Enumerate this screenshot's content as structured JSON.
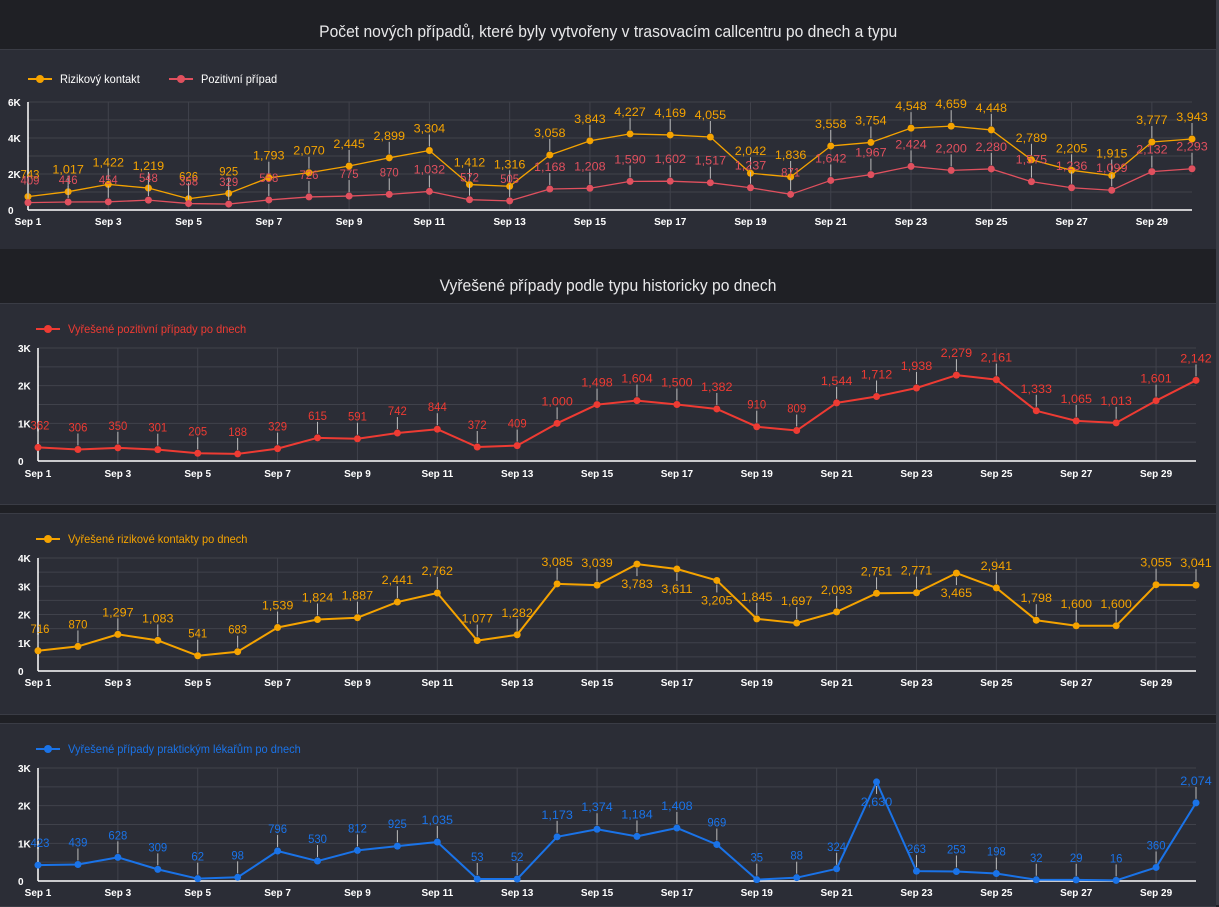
{
  "sections": {
    "section1_title": "Počet nových případů, které byly vytvořeny v trasovacím callcentru po dnech a typu",
    "section2_title": "Vyřešené případy podle typu historicky po dnech"
  },
  "colors": {
    "orange": "#f5a300",
    "red_soft": "#e0505e",
    "red": "#ee3b33",
    "blue": "#1a73e8",
    "axis_text": "#ffffff",
    "grid": "#40424b"
  },
  "chart_data": [
    {
      "id": "new-cases",
      "type": "line",
      "title": "Počet nových případů, které byly vytvořeny v trasovacím callcentru po dnech a typu",
      "xlabel": "",
      "ylabel": "",
      "legend_position": "top-left",
      "grid": true,
      "x": [
        "Sep 1",
        "Sep 2",
        "Sep 3",
        "Sep 4",
        "Sep 5",
        "Sep 6",
        "Sep 7",
        "Sep 8",
        "Sep 9",
        "Sep 10",
        "Sep 11",
        "Sep 12",
        "Sep 13",
        "Sep 14",
        "Sep 15",
        "Sep 16",
        "Sep 17",
        "Sep 18",
        "Sep 19",
        "Sep 20",
        "Sep 21",
        "Sep 22",
        "Sep 23",
        "Sep 24",
        "Sep 25",
        "Sep 26",
        "Sep 27",
        "Sep 28",
        "Sep 29",
        "Sep 30"
      ],
      "x_tick_labels": [
        "Sep 1",
        "Sep 3",
        "Sep 5",
        "Sep 7",
        "Sep 9",
        "Sep 11",
        "Sep 13",
        "Sep 15",
        "Sep 17",
        "Sep 19",
        "Sep 21",
        "Sep 23",
        "Sep 25",
        "Sep 27",
        "Sep 29"
      ],
      "y_ticks": [
        "0",
        "2K",
        "4K",
        "6K"
      ],
      "ylim": [
        0,
        6000
      ],
      "series": [
        {
          "name": "Rizikový kontakt",
          "color": "#f5a300",
          "values": [
            743,
            1017,
            1422,
            1219,
            626,
            925,
            1793,
            2070,
            2445,
            2899,
            3304,
            1412,
            1316,
            3058,
            3843,
            4227,
            4169,
            4055,
            2042,
            1836,
            3558,
            3754,
            4548,
            4659,
            4448,
            2789,
            2205,
            1915,
            3777,
            3943
          ]
        },
        {
          "name": "Pozitivní případ",
          "color": "#e0505e",
          "values": [
            409,
            446,
            454,
            548,
            358,
            329,
            558,
            726,
            775,
            870,
            1032,
            572,
            505,
            1168,
            1208,
            1590,
            1602,
            1517,
            1237,
            871,
            1642,
            1967,
            2424,
            2200,
            2280,
            1575,
            1236,
            1099,
            2132,
            2293
          ]
        }
      ]
    },
    {
      "id": "resolved-positive",
      "type": "line",
      "title": "",
      "xlabel": "",
      "ylabel": "",
      "legend_position": "top-left",
      "grid": true,
      "x_tick_labels": [
        "Sep 1",
        "Sep 3",
        "Sep 5",
        "Sep 7",
        "Sep 9",
        "Sep 11",
        "Sep 13",
        "Sep 15",
        "Sep 17",
        "Sep 19",
        "Sep 21",
        "Sep 23",
        "Sep 25",
        "Sep 27",
        "Sep 29"
      ],
      "y_ticks": [
        "0",
        "1K",
        "2K",
        "3K"
      ],
      "ylim": [
        0,
        3000
      ],
      "series": [
        {
          "name": "Vyřešené pozitivní případy po dnech",
          "color": "#ee3b33",
          "values": [
            362,
            306,
            350,
            301,
            205,
            188,
            329,
            615,
            591,
            742,
            844,
            372,
            409,
            1000,
            1498,
            1604,
            1500,
            1382,
            910,
            809,
            1544,
            1712,
            1938,
            2279,
            2161,
            1333,
            1065,
            1013,
            1601,
            2142
          ]
        }
      ]
    },
    {
      "id": "resolved-risk-contacts",
      "type": "line",
      "title": "",
      "xlabel": "",
      "ylabel": "",
      "legend_position": "top-left",
      "grid": true,
      "x_tick_labels": [
        "Sep 1",
        "Sep 3",
        "Sep 5",
        "Sep 7",
        "Sep 9",
        "Sep 11",
        "Sep 13",
        "Sep 15",
        "Sep 17",
        "Sep 19",
        "Sep 21",
        "Sep 23",
        "Sep 25",
        "Sep 27",
        "Sep 29"
      ],
      "y_ticks": [
        "0",
        "1K",
        "2K",
        "3K",
        "4K"
      ],
      "ylim": [
        0,
        4000
      ],
      "series": [
        {
          "name": "Vyřešené rizikové kontakty po dnech",
          "color": "#f5a300",
          "values": [
            716,
            870,
            1297,
            1083,
            541,
            683,
            1539,
            1824,
            1887,
            2441,
            2762,
            1077,
            1282,
            3085,
            3039,
            3783,
            3611,
            3205,
            1845,
            1697,
            2093,
            2751,
            2771,
            3465,
            2941,
            1798,
            1600,
            1600,
            3055,
            3041
          ],
          "label_below": [
            15,
            16,
            17,
            23
          ]
        }
      ]
    },
    {
      "id": "resolved-gp",
      "type": "line",
      "title": "",
      "xlabel": "",
      "ylabel": "",
      "legend_position": "top-left",
      "grid": true,
      "x_tick_labels": [
        "Sep 1",
        "Sep 3",
        "Sep 5",
        "Sep 7",
        "Sep 9",
        "Sep 11",
        "Sep 13",
        "Sep 15",
        "Sep 17",
        "Sep 19",
        "Sep 21",
        "Sep 23",
        "Sep 25",
        "Sep 27",
        "Sep 29"
      ],
      "y_ticks": [
        "0",
        "1K",
        "2K",
        "3K"
      ],
      "ylim": [
        0,
        3000
      ],
      "series": [
        {
          "name": "Vyřešené případy praktickým lékařům po dnech",
          "color": "#1a73e8",
          "values": [
            423,
            439,
            628,
            309,
            62,
            98,
            796,
            530,
            812,
            925,
            1035,
            53,
            52,
            1173,
            1374,
            1184,
            1408,
            969,
            35,
            88,
            324,
            2630,
            263,
            253,
            198,
            32,
            29,
            16,
            360,
            2074
          ],
          "label_below": [
            21
          ]
        }
      ]
    }
  ]
}
